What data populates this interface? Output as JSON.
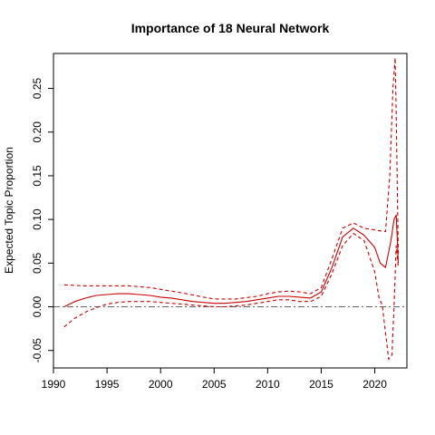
{
  "chart_data": {
    "type": "line",
    "title": "Importance of 18 Neural Network",
    "xlabel": "",
    "ylabel": "Expected Topic Proportion",
    "xlim": [
      1990,
      2023
    ],
    "ylim": [
      -0.07,
      0.29
    ],
    "x_ticks": [
      1990,
      1995,
      2000,
      2005,
      2010,
      2015,
      2020
    ],
    "y_ticks": [
      -0.05,
      0.0,
      0.05,
      0.1,
      0.15,
      0.2,
      0.25
    ],
    "y_tick_labels": [
      "-0.05",
      "0.00",
      "0.05",
      "0.10",
      "0.15",
      "0.20",
      "0.25"
    ],
    "reference_line": 0,
    "line_color": "#cc0000",
    "reference_color": "#666666",
    "series": [
      {
        "role": "estimate",
        "x": [
          1991,
          1992,
          1993,
          1994,
          1995,
          1996,
          1997,
          1998,
          1999,
          2000,
          2001,
          2002,
          2003,
          2004,
          2005,
          2006,
          2007,
          2008,
          2009,
          2010,
          2011,
          2012,
          2013,
          2014,
          2015,
          2016,
          2017,
          2018,
          2019,
          2020,
          2020.5,
          2021,
          2021.5,
          2021.8,
          2022,
          2022.2
        ],
        "y": [
          0.0,
          0.006,
          0.01,
          0.013,
          0.014,
          0.015,
          0.015,
          0.014,
          0.013,
          0.011,
          0.01,
          0.008,
          0.006,
          0.005,
          0.004,
          0.004,
          0.005,
          0.006,
          0.008,
          0.01,
          0.012,
          0.012,
          0.011,
          0.01,
          0.017,
          0.045,
          0.08,
          0.09,
          0.082,
          0.068,
          0.05,
          0.045,
          0.075,
          0.1,
          0.105,
          0.05
        ]
      },
      {
        "role": "upper",
        "x": [
          1991,
          1993,
          1995,
          1997,
          1999,
          2000,
          2002,
          2004,
          2005,
          2007,
          2009,
          2010,
          2011,
          2012,
          2013,
          2014,
          2015,
          2016,
          2017,
          2018,
          2019,
          2020,
          2020.5,
          2021,
          2021.4,
          2021.7,
          2021.9,
          2022,
          2022.2
        ],
        "y": [
          0.025,
          0.024,
          0.024,
          0.024,
          0.022,
          0.02,
          0.016,
          0.011,
          0.009,
          0.009,
          0.012,
          0.015,
          0.017,
          0.018,
          0.017,
          0.015,
          0.022,
          0.055,
          0.09,
          0.096,
          0.09,
          0.088,
          0.087,
          0.086,
          0.15,
          0.25,
          0.285,
          0.22,
          0.06
        ]
      },
      {
        "role": "lower",
        "x": [
          1991,
          1992,
          1993,
          1994,
          1995,
          1996,
          1997,
          1998,
          1999,
          2000,
          2001,
          2002,
          2003,
          2004,
          2005,
          2006,
          2007,
          2008,
          2009,
          2010,
          2011,
          2012,
          2013,
          2014,
          2015,
          2016,
          2017,
          2018,
          2019,
          2020,
          2020.4,
          2020.7,
          2021,
          2021.3,
          2021.6,
          2021.8,
          2022,
          2022.2
        ],
        "y": [
          -0.023,
          -0.013,
          -0.006,
          -0.001,
          0.003,
          0.005,
          0.006,
          0.006,
          0.006,
          0.005,
          0.004,
          0.003,
          0.002,
          0.001,
          0.0,
          0.0,
          0.001,
          0.002,
          0.004,
          0.006,
          0.008,
          0.008,
          0.006,
          0.006,
          0.012,
          0.038,
          0.07,
          0.084,
          0.076,
          0.04,
          0.01,
          0.002,
          -0.03,
          -0.06,
          -0.055,
          0.0,
          0.07,
          0.045
        ]
      }
    ]
  }
}
